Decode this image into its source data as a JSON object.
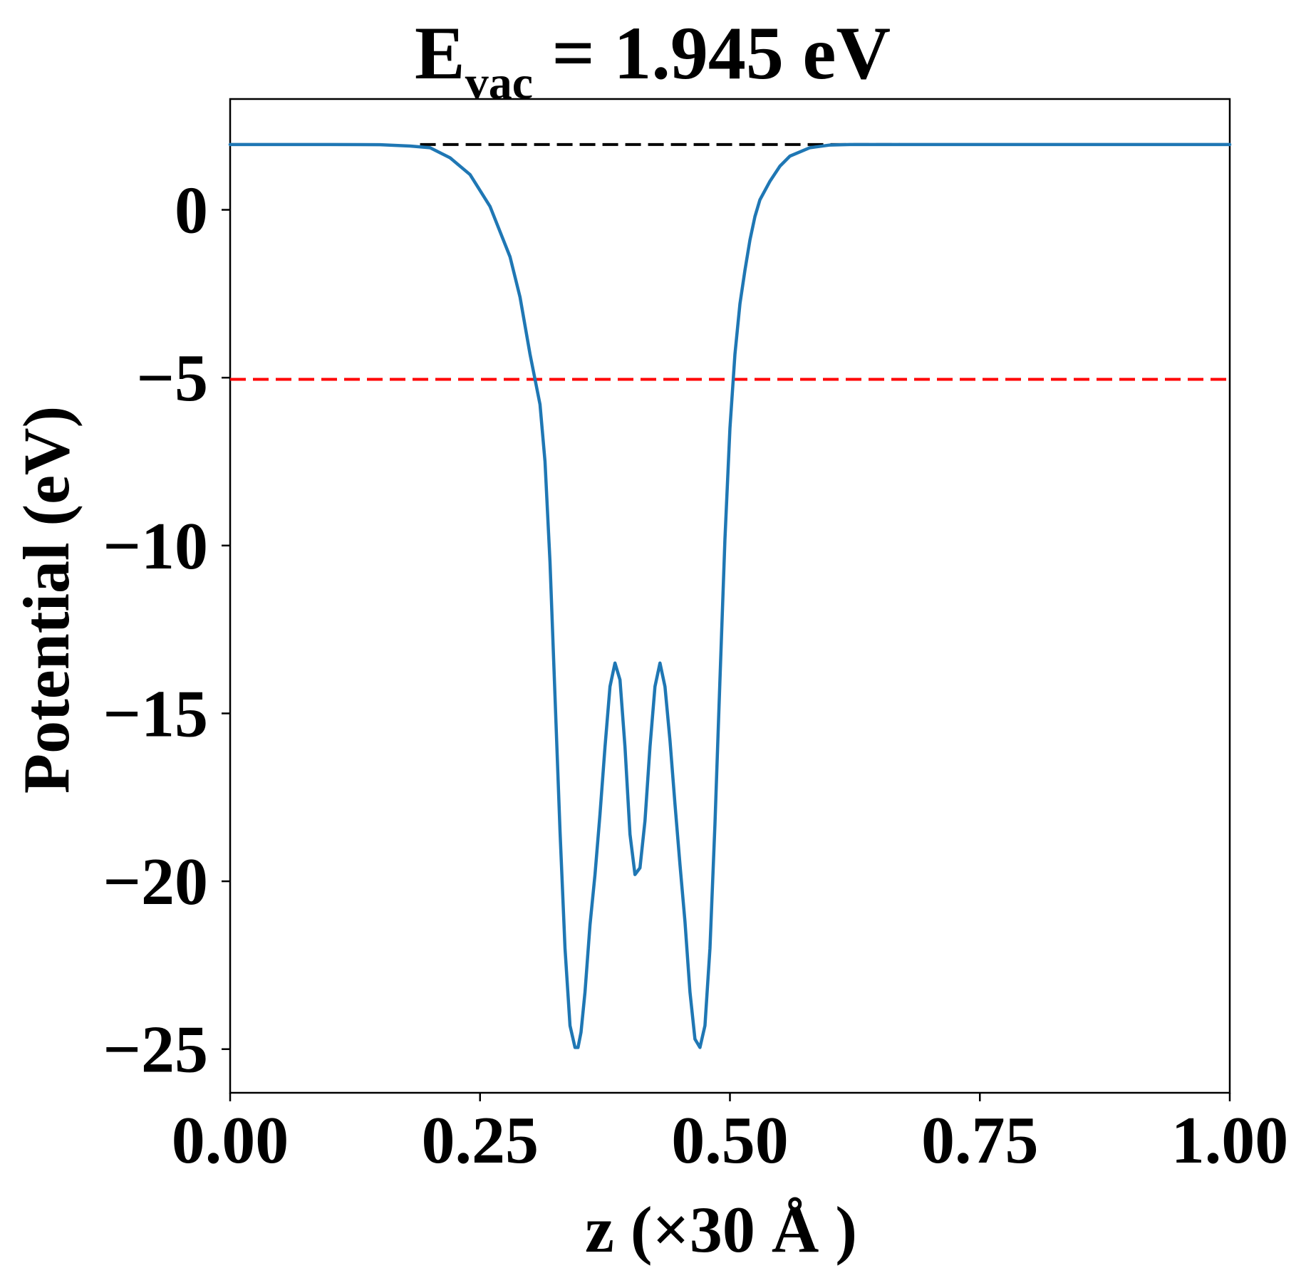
{
  "chart_data": {
    "type": "line",
    "title": {
      "main": "E",
      "subscript": "vac",
      "rest": " = 1.945 eV"
    },
    "xlabel": "z (×30 Å )",
    "ylabel": "Potential (eV)",
    "xlim": [
      0.0,
      1.0
    ],
    "ylim": [
      -26.3,
      3.3
    ],
    "xticks": [
      0.0,
      0.25,
      0.5,
      0.75,
      1.0
    ],
    "xtick_labels": [
      "0.00",
      "0.25",
      "0.50",
      "0.75",
      "1.00"
    ],
    "yticks": [
      0,
      -5,
      -10,
      -15,
      -20,
      -25
    ],
    "ytick_labels": [
      "0",
      "−5",
      "−10",
      "−15",
      "−20",
      "−25"
    ],
    "grid": false,
    "colors": {
      "series": "#1f77b4",
      "vacuum_line": "#000000",
      "reference_line": "#ff0000"
    },
    "reference_lines": [
      {
        "y": 1.945,
        "x_range": [
          0.19,
          0.67
        ],
        "style": "dashed",
        "color": "#000000"
      },
      {
        "y": -5.05,
        "x_range": [
          0.0,
          1.0
        ],
        "style": "dashed",
        "color": "#ff0000"
      }
    ],
    "series": [
      {
        "x": [
          0.0,
          0.05,
          0.1,
          0.15,
          0.18,
          0.2,
          0.22,
          0.24,
          0.26,
          0.28,
          0.29,
          0.3,
          0.31,
          0.315,
          0.32,
          0.325,
          0.33,
          0.335,
          0.34,
          0.345,
          0.348,
          0.351,
          0.355,
          0.36,
          0.365,
          0.37,
          0.375,
          0.38,
          0.385,
          0.39,
          0.395,
          0.4,
          0.405,
          0.41,
          0.415,
          0.42,
          0.425,
          0.43,
          0.435,
          0.44,
          0.445,
          0.45,
          0.455,
          0.46,
          0.465,
          0.47,
          0.475,
          0.48,
          0.485,
          0.49,
          0.495,
          0.5,
          0.505,
          0.51,
          0.515,
          0.52,
          0.525,
          0.53,
          0.54,
          0.55,
          0.56,
          0.58,
          0.6,
          0.62,
          0.64,
          0.66,
          0.7,
          0.8,
          0.9,
          1.0
        ],
        "y": [
          1.945,
          1.945,
          1.945,
          1.94,
          1.9,
          1.85,
          1.55,
          1.05,
          0.1,
          -1.4,
          -2.6,
          -4.3,
          -5.8,
          -7.5,
          -10.5,
          -14.5,
          -18.5,
          -22.0,
          -24.3,
          -24.95,
          -24.95,
          -24.5,
          -23.3,
          -21.3,
          -19.8,
          -18.0,
          -16.0,
          -14.2,
          -13.5,
          -14.0,
          -16.0,
          -18.6,
          -19.8,
          -19.6,
          -18.2,
          -16.0,
          -14.2,
          -13.5,
          -14.2,
          -15.8,
          -17.7,
          -19.5,
          -21.2,
          -23.3,
          -24.7,
          -24.95,
          -24.3,
          -22.0,
          -18.3,
          -14.0,
          -9.8,
          -6.5,
          -4.3,
          -2.8,
          -1.8,
          -0.9,
          -0.2,
          0.3,
          0.85,
          1.3,
          1.6,
          1.85,
          1.93,
          1.945,
          1.945,
          1.945,
          1.945,
          1.945,
          1.945,
          1.945
        ]
      }
    ]
  }
}
